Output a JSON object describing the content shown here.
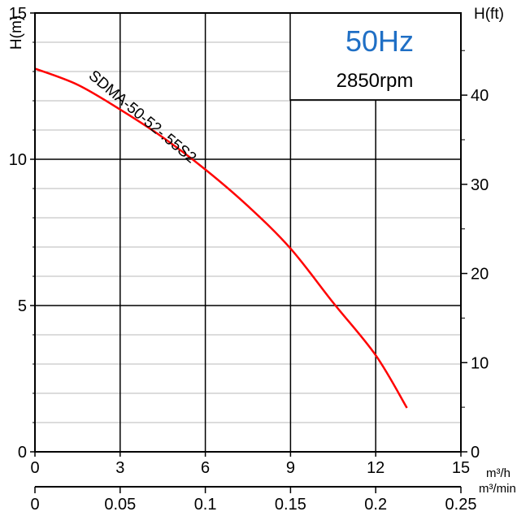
{
  "chart_data": {
    "type": "line",
    "x": [
      0,
      1.5,
      3,
      4.5,
      6,
      7.5,
      9,
      10.5,
      12,
      13.1
    ],
    "series": [
      {
        "name": "SDMA-50-52-.55S2",
        "color": "#ff0000",
        "y": [
          13.1,
          12.55,
          11.7,
          10.75,
          9.65,
          8.4,
          6.95,
          5.1,
          3.3,
          1.5
        ]
      }
    ],
    "xlim": [
      0,
      15
    ],
    "ylim": [
      0,
      15
    ],
    "x_ticks": [
      "0",
      "3",
      "6",
      "9",
      "12",
      "15"
    ],
    "x_unit": "m³/h",
    "x2_ticks": [
      "0",
      "0.05",
      "0.1",
      "0.15",
      "0.2",
      "0.25"
    ],
    "x2_unit": "m³/min",
    "ylabel_left": "H(m)",
    "y_ticks_left": [
      "0",
      "5",
      "10",
      "15"
    ],
    "ylabel_right": "H(ft)",
    "y_ticks_right": [
      {
        "label": "0",
        "value_ft": 0
      },
      {
        "label": "10",
        "value_ft": 10
      },
      {
        "label": "20",
        "value_ft": 20
      },
      {
        "label": "30",
        "value_ft": 30
      },
      {
        "label": "40",
        "value_ft": 40
      }
    ],
    "frequency": "50Hz",
    "speed": "2850rpm",
    "colors": {
      "curve": "#ff0000",
      "frequency_text": "#1f6fc5",
      "grid_major": "#000000",
      "grid_minor": "#b9b9b9"
    },
    "grid": true
  }
}
